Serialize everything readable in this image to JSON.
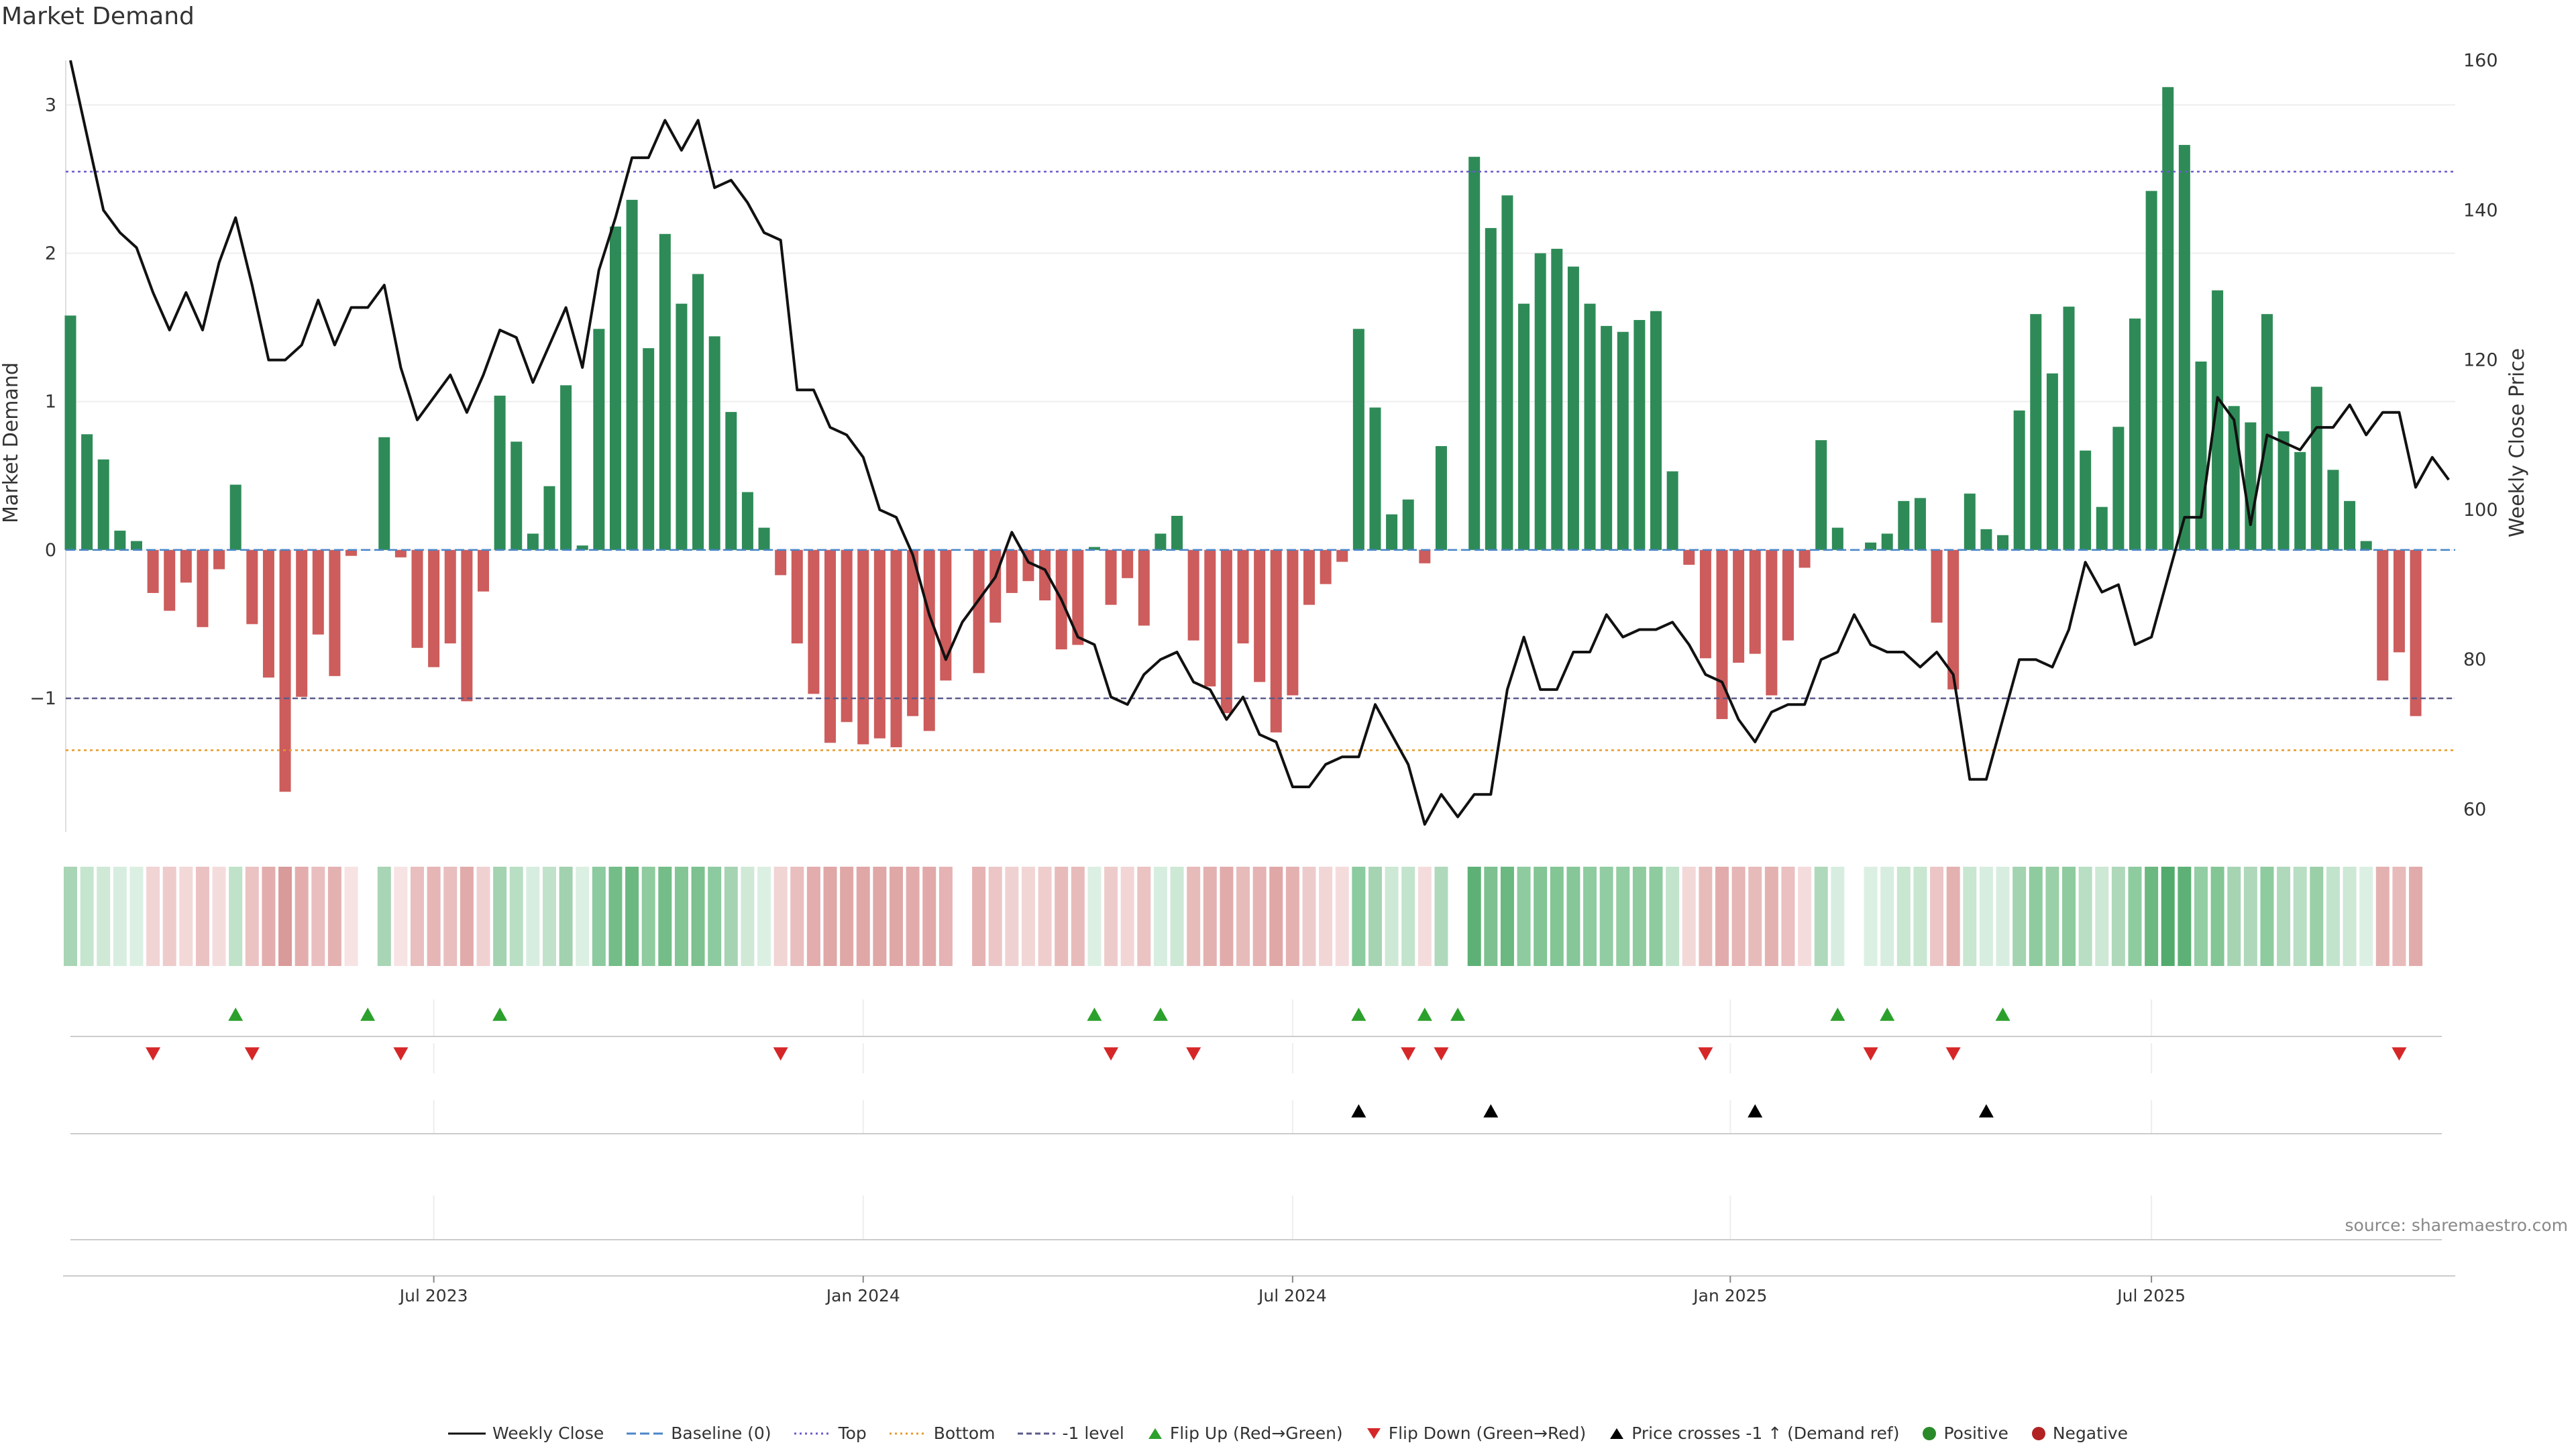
{
  "colors": {
    "positive_bar": "#2e8b57",
    "negative_bar": "#cd5c5c",
    "price_line": "#111111",
    "top_line": "#6a5acd",
    "bottom_line": "#e69a28",
    "minus1_line": "#5a5a8a",
    "flip_up": "#2ca02c",
    "flip_down": "#d62728",
    "cross": "#000000"
  },
  "chart_data": {
    "type": "bar",
    "title": "Market Demand",
    "ylabel": "Market Demand",
    "ylabel_right": "Weekly Close Price",
    "ylim": [
      -1.9,
      3.3
    ],
    "ylim_right": [
      57,
      160
    ],
    "yticks": [
      -1,
      0,
      1,
      2,
      3
    ],
    "yticks_right": [
      60,
      80,
      100,
      120,
      140,
      160
    ],
    "top_level": 2.55,
    "bottom_level": -1.35,
    "minus1_level": -1,
    "xtick_labels": [
      "Jul 2023",
      "Jan 2024",
      "Jul 2024",
      "Jan 2025",
      "Jul 2025"
    ],
    "xtick_positions": [
      22,
      48,
      74,
      100.5,
      126
    ],
    "demand": [
      1.58,
      0.78,
      0.61,
      0.13,
      0.06,
      -0.29,
      -0.41,
      -0.22,
      -0.52,
      -0.13,
      0.44,
      -0.5,
      -0.86,
      -1.63,
      -0.99,
      -0.57,
      -0.85,
      -0.04,
      0,
      0.76,
      -0.05,
      -0.66,
      -0.79,
      -0.63,
      -1.02,
      -0.28,
      1.04,
      0.73,
      0.11,
      0.43,
      1.11,
      0.03,
      1.49,
      2.18,
      2.36,
      1.36,
      2.13,
      1.66,
      1.86,
      1.44,
      0.93,
      0.39,
      0.15,
      -0.17,
      -0.63,
      -0.97,
      -1.3,
      -1.16,
      -1.31,
      -1.27,
      -1.33,
      -1.12,
      -1.22,
      -0.88,
      0,
      -0.83,
      -0.49,
      -0.29,
      -0.21,
      -0.34,
      -0.67,
      -0.64,
      0.02,
      -0.37,
      -0.19,
      -0.51,
      0.11,
      0.23,
      -0.61,
      -0.92,
      -1.1,
      -0.63,
      -0.89,
      -1.23,
      -0.98,
      -0.37,
      -0.23,
      -0.08,
      1.49,
      0.96,
      0.24,
      0.34,
      -0.09,
      0.7,
      0,
      2.65,
      2.17,
      2.39,
      1.66,
      2.0,
      2.03,
      1.91,
      1.66,
      1.51,
      1.47,
      1.55,
      1.61,
      0.53,
      -0.1,
      -0.73,
      -1.14,
      -0.76,
      -0.7,
      -0.98,
      -0.61,
      -0.12,
      0.74,
      0.15,
      0,
      0.05,
      0.11,
      0.33,
      0.35,
      -0.49,
      -0.94,
      0.38,
      0.14,
      0.1,
      0.94,
      1.59,
      1.19,
      1.64,
      0.67,
      0.29,
      0.83,
      1.56,
      2.42,
      3.12,
      2.73,
      1.27,
      1.75,
      0.97,
      0.86,
      1.59,
      0.8,
      0.66,
      1.1,
      0.54,
      0.33,
      0.06,
      -0.88,
      -0.69,
      -1.12
    ],
    "price": [
      160,
      150,
      140,
      137,
      135,
      129,
      124,
      129,
      124,
      133,
      139,
      130,
      120,
      120,
      122,
      128,
      122,
      127,
      127,
      130,
      119,
      112,
      115,
      118,
      113,
      118,
      124,
      123,
      117,
      122,
      127,
      119,
      132,
      139,
      147,
      147,
      152,
      148,
      152,
      143,
      144,
      141,
      137,
      136,
      116,
      116,
      111,
      110,
      107,
      100,
      99,
      94,
      86,
      80,
      85,
      88,
      91,
      97,
      93,
      92,
      88,
      83,
      82,
      75,
      74,
      78,
      80,
      81,
      77,
      76,
      72,
      75,
      70,
      69,
      63,
      63,
      66,
      67,
      67,
      74,
      70,
      66,
      58,
      62,
      59,
      62,
      62,
      76,
      83,
      76,
      76,
      81,
      81,
      86,
      83,
      84,
      84,
      85,
      82,
      78,
      77,
      72,
      69,
      73,
      74,
      74,
      80,
      81,
      86,
      82,
      81,
      81,
      79,
      81,
      78,
      64,
      64,
      72,
      80,
      80,
      79,
      84,
      93,
      89,
      90,
      82,
      83,
      91,
      99,
      99,
      115,
      112,
      98,
      110,
      109,
      108,
      111,
      111,
      114,
      110,
      113,
      113,
      103,
      107,
      104
    ]
  },
  "strip_colors": [
    "#a8d5b5",
    "#c6e5cf",
    "#cfe9d6",
    "#d7ede0",
    "#dcefe3",
    "#f1d4d4",
    "#eecbcb",
    "#f3d8d8",
    "#ebc2c2",
    "#f5dcdc",
    "#c0e2c9",
    "#ebc3c3",
    "#e3adad",
    "#d99a9a",
    "#e3adad",
    "#e9bebe",
    "#e4b1b1",
    "#f7e3e3",
    "#ffffff",
    "#a8d5b5",
    "#f7e3e3",
    "#e9bebe",
    "#e6b5b5",
    "#e9bebe",
    "#e2abab",
    "#f0d1d1",
    "#a4d3b1",
    "#b8dec3",
    "#d7ede0",
    "#c1e2ca",
    "#a1d1ae",
    "#dcefe3",
    "#8ccaa0",
    "#74bd88",
    "#6bb881",
    "#8ecb9f",
    "#74bd88",
    "#83c595",
    "#7cc18f",
    "#8ccaa0",
    "#a6d4b3",
    "#cfe9d6",
    "#dcefe3",
    "#f1d4d4",
    "#e9bebe",
    "#e3adad",
    "#e0a7a7",
    "#e0a7a7",
    "#e0a7a7",
    "#e0a7a7",
    "#e0a7a7",
    "#e2abab",
    "#e1a9a9",
    "#e5b3b3",
    "#ffffff",
    "#e5b3b3",
    "#ecc6c6",
    "#f0d1d1",
    "#f2d6d6",
    "#efcdcd",
    "#e8bbbb",
    "#e8bbbb",
    "#dcefe3",
    "#eecbcb",
    "#f2d6d6",
    "#ebc3c3",
    "#d7ede0",
    "#cde8d5",
    "#e8bbbb",
    "#e4b1b1",
    "#e2abab",
    "#e8bbbb",
    "#e5b3b3",
    "#e0a7a7",
    "#e4b1b1",
    "#eecbcb",
    "#f2d6d6",
    "#f5dcdc",
    "#8ccaa0",
    "#a6d4b3",
    "#cde8d5",
    "#c3e4cc",
    "#f5dcdc",
    "#b0d9bc",
    "#ffffff",
    "#5eb176",
    "#7cc18f",
    "#6bb881",
    "#8ecb9f",
    "#83c595",
    "#83c595",
    "#86c698",
    "#8ecb9f",
    "#91cca2",
    "#93cda3",
    "#90cba0",
    "#8ecb9f",
    "#c3e4cc",
    "#f3d8d8",
    "#e8bbbb",
    "#e2abab",
    "#e6b5b5",
    "#e8bbbb",
    "#e4b1b1",
    "#eac0c0",
    "#f5dcdc",
    "#b0d9bc",
    "#d7ede0",
    "#ffffff",
    "#dcefe3",
    "#d7ede0",
    "#c8e6d0",
    "#c8e6d0",
    "#ecc6c6",
    "#e4b1b1",
    "#c8e6d0",
    "#d7ede0",
    "#d7ede0",
    "#a4d3b1",
    "#8ecb9f",
    "#9acfa8",
    "#8ecb9f",
    "#b8dec3",
    "#cde8d5",
    "#afd8ba",
    "#8ecb9f",
    "#6bb881",
    "#52ab6c",
    "#5eb176",
    "#93cda3",
    "#83c595",
    "#a6d4b3",
    "#afd8ba",
    "#8ecb9f",
    "#b0d9bc",
    "#b8dec3",
    "#9acfa8",
    "#c3e4cc",
    "#cde8d5",
    "#dcefe3",
    "#e4b1b1",
    "#e8bbbb",
    "#e2abab"
  ],
  "events": {
    "flip_up": [
      10,
      18,
      26,
      62,
      66,
      78,
      82,
      84,
      107,
      110,
      117
    ],
    "flip_down": [
      5,
      11,
      20,
      43,
      63,
      68,
      81,
      83,
      99,
      109,
      114,
      141
    ],
    "price_cross_up": [
      78,
      86,
      102,
      116
    ]
  },
  "source_note": "source: sharemaestro.com",
  "legend": {
    "weekly_close": "Weekly Close",
    "baseline": "Baseline (0)",
    "top": "Top",
    "bottom": "Bottom",
    "minus1": "-1 level",
    "flip_up": "Flip Up (Red→Green)",
    "flip_down": "Flip Down (Green→Red)",
    "price_cross": "Price crosses -1 ↑ (Demand ref)",
    "positive": "Positive",
    "negative": "Negative"
  }
}
